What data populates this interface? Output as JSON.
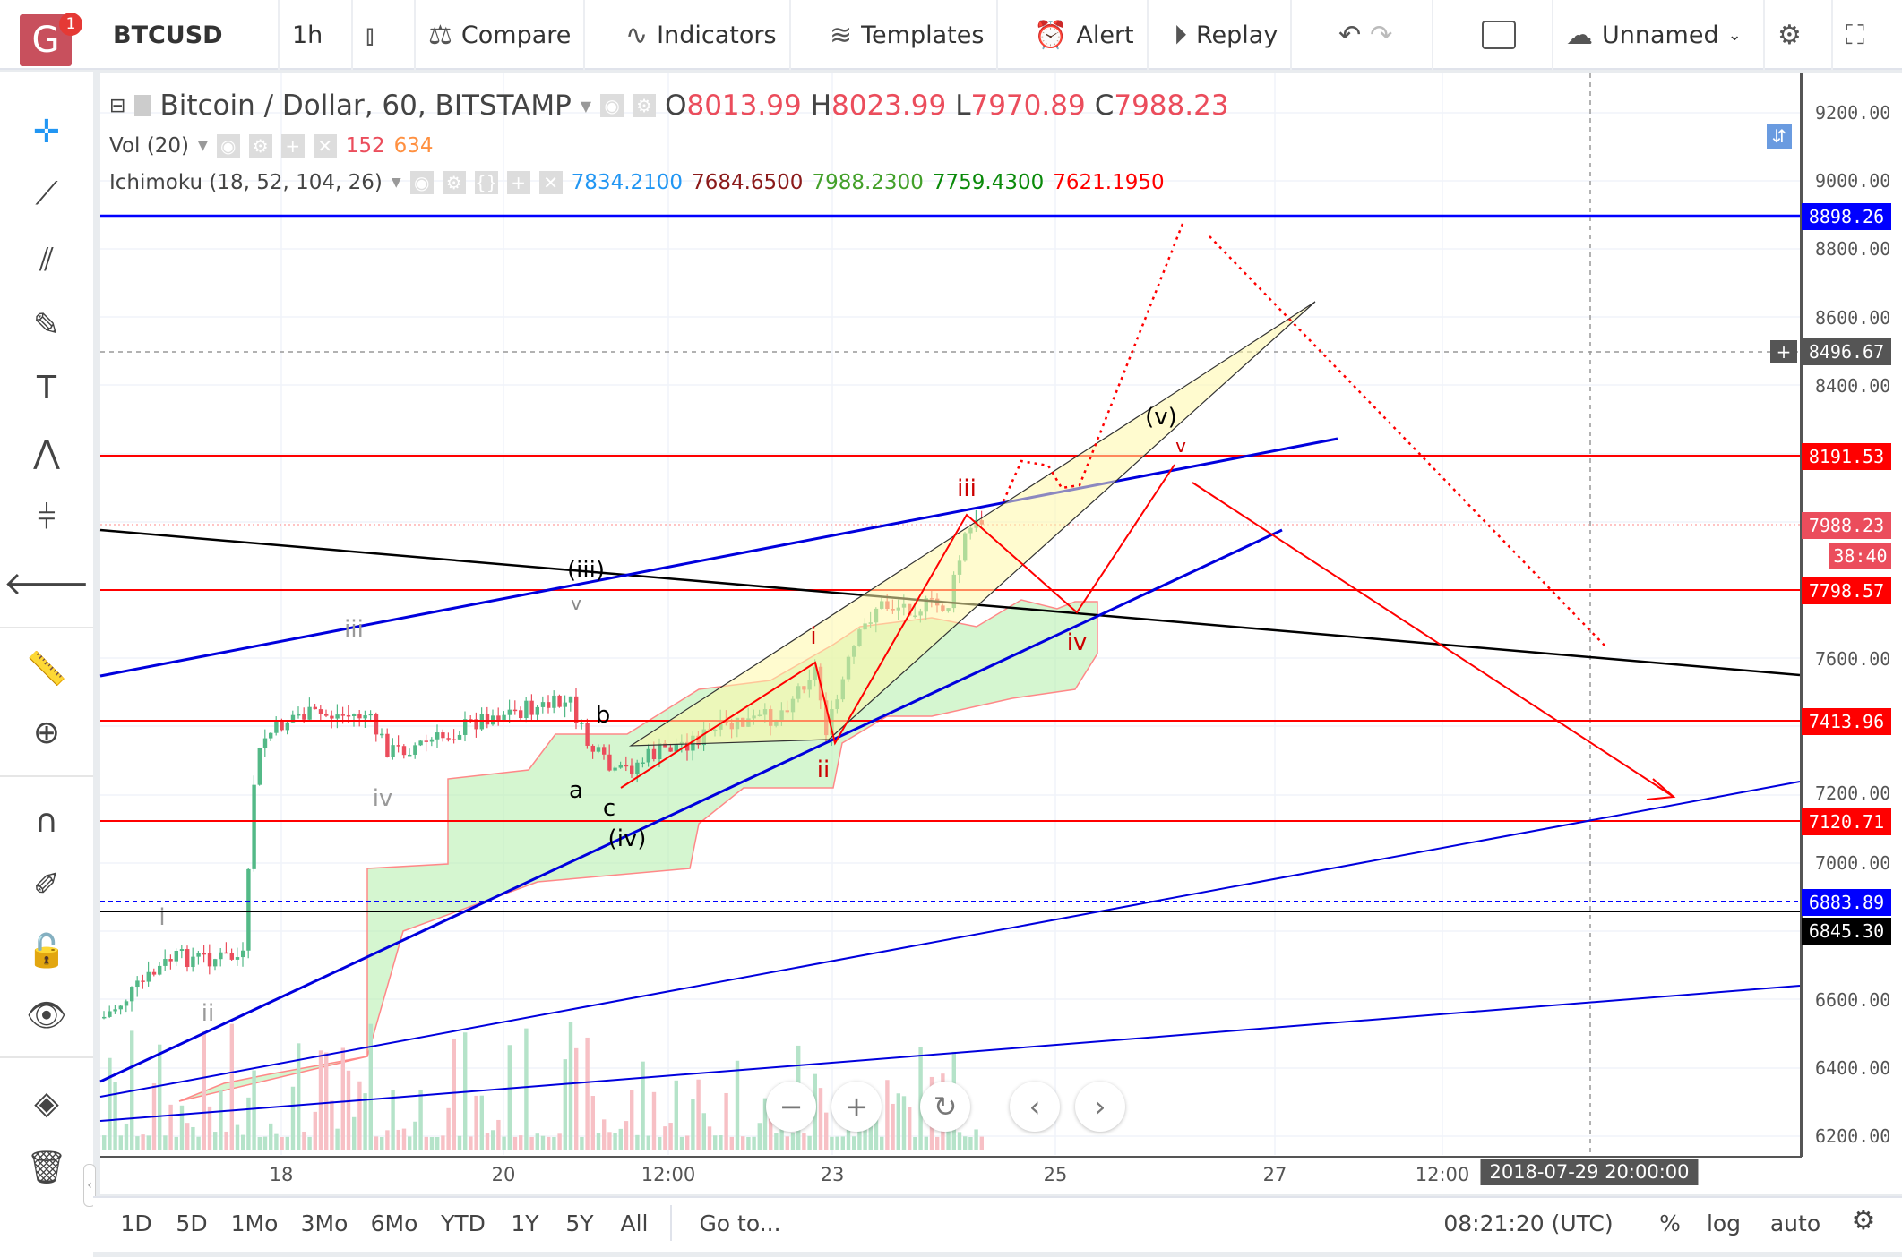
{
  "toolbar": {
    "logo": "G",
    "badge": "1",
    "symbol": "BTCUSD",
    "interval": "1h",
    "compare": "Compare",
    "indicators": "Indicators",
    "templates": "Templates",
    "alert": "Alert",
    "replay": "Replay",
    "layout_name": "Unnamed"
  },
  "legend": {
    "title": "Bitcoin / Dollar, 60, BITSTAMP",
    "o_label": "O",
    "o": "8013.99",
    "h_label": "H",
    "h": "8023.99",
    "l_label": "L",
    "l": "7970.89",
    "c_label": "C",
    "c": "7988.23",
    "vol_label": "Vol (20)",
    "vol1": "152",
    "vol2": "634",
    "ichi_label": "Ichimoku (18, 52, 104, 26)",
    "ichi": [
      "7834.2100",
      "7684.6500",
      "7988.2300",
      "7759.4300",
      "7621.1950"
    ]
  },
  "price_axis": [
    "9200.00",
    "9000.00",
    "8800.00",
    "8600.00",
    "8400.00",
    "7600.00",
    "7200.00",
    "7000.00",
    "6600.00",
    "6400.00",
    "6200.00"
  ],
  "price_labels": {
    "blue_top": "8898.26",
    "crosshair": "8496.67",
    "r1": "8191.53",
    "last": "7988.23",
    "countdown": "38:40",
    "r2": "7798.57",
    "r3": "7413.96",
    "r4": "7120.71",
    "blue_dash": "6883.89",
    "black": "6845.30"
  },
  "time_axis": [
    "18",
    "20",
    "12:00",
    "23",
    "25",
    "27",
    "12:00"
  ],
  "crosshair_time": "2018-07-29 20:00:00",
  "wave_labels": {
    "iii": "iii",
    "v5": "(v)",
    "iv": "iv",
    "ii": "ii",
    "i": "i",
    "iii3": "(iii)",
    "b": "b",
    "a": "a",
    "c": "c",
    "iv4": "(iv)",
    "giii": "iii",
    "giv": "iv",
    "gii": "ii",
    "gi": "i",
    "gv": "v",
    "rv": "v"
  },
  "bottom": {
    "ranges": [
      "1D",
      "5D",
      "1Mo",
      "3Mo",
      "6Mo",
      "YTD",
      "1Y",
      "5Y",
      "All"
    ],
    "goto": "Go to...",
    "clock": "08:21:20 (UTC)",
    "percent": "%",
    "log": "log",
    "auto": "auto"
  },
  "colors": {
    "up": "#53b987",
    "down": "#eb4d5c",
    "red_line": "#ff0000",
    "blue_line": "#0000ff"
  }
}
